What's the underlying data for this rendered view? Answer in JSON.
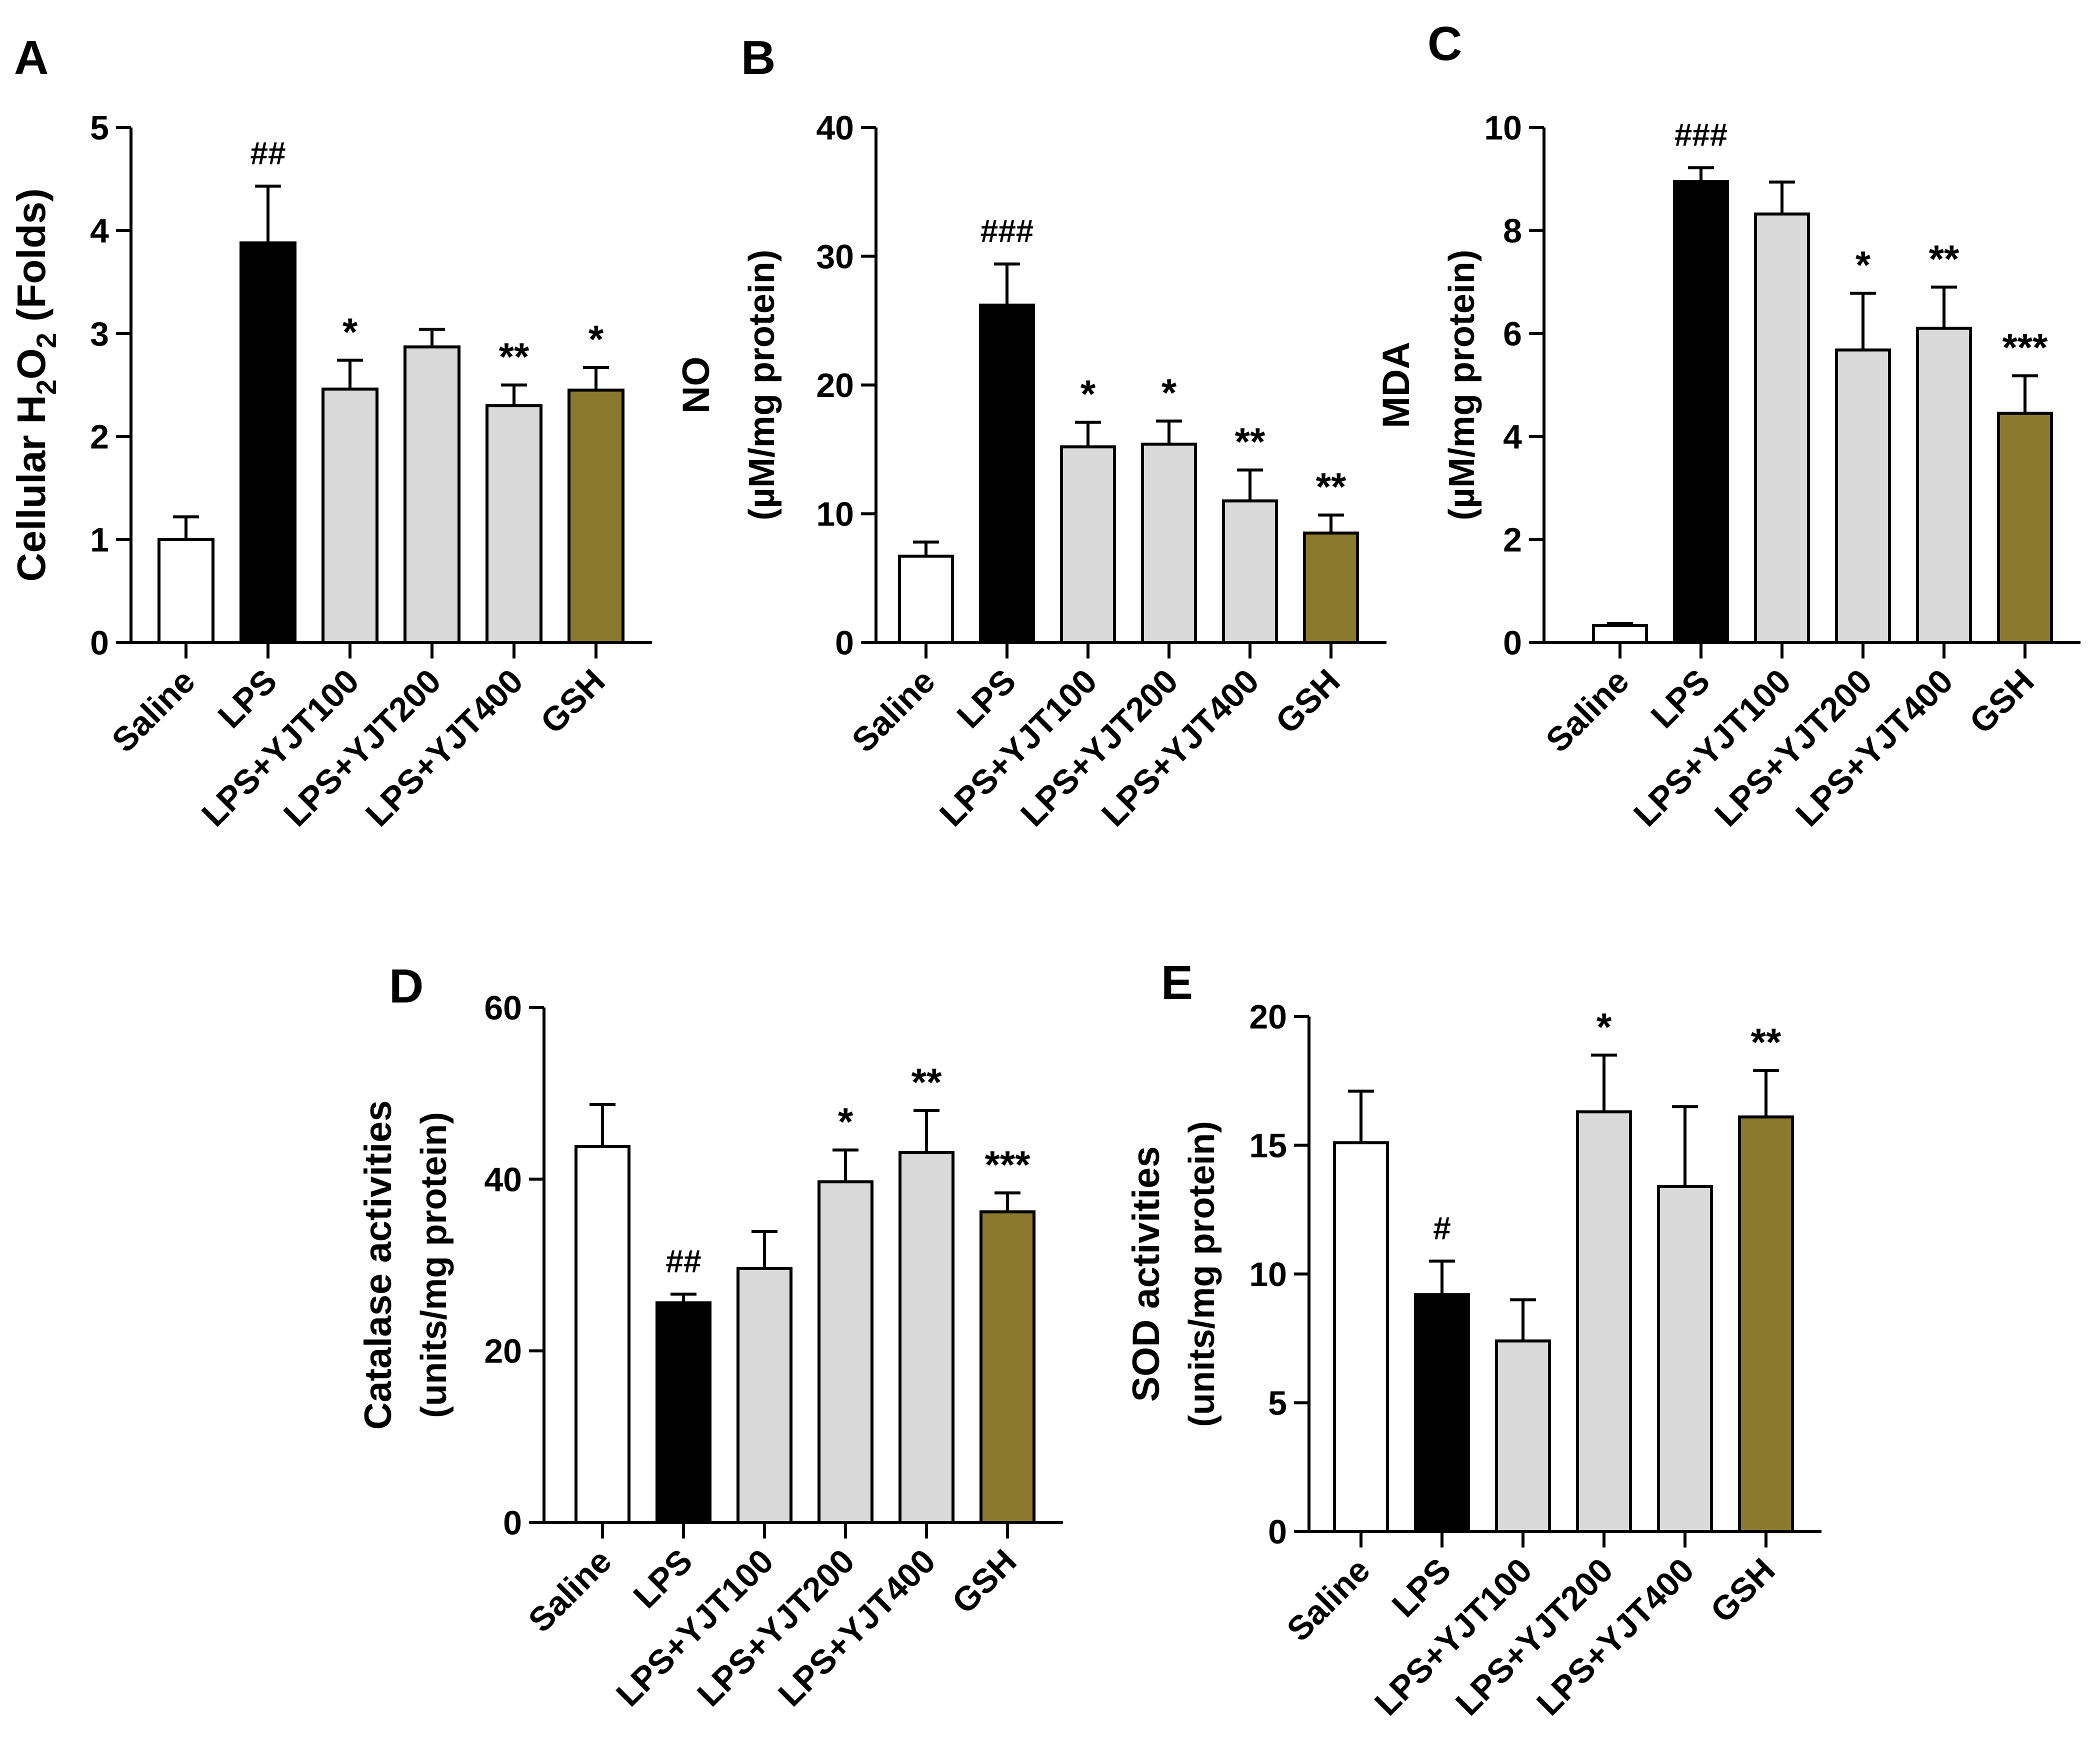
{
  "figure": {
    "background": "#ffffff"
  },
  "colors": {
    "Saline": "#ffffff",
    "LPS": "#000000",
    "LPS+YJT100": "#d9d9d9",
    "LPS+YJT200": "#d9d9d9",
    "LPS+YJT400": "#d9d9d9",
    "GSH": "#8b7a2e"
  },
  "chart_data": [
    {
      "panel": "A",
      "type": "bar",
      "ylabel_main": "Cellular H",
      "ylabel_sub1": "2",
      "ylabel_mid": "O",
      "ylabel_sub2": "2",
      "ylabel_tail": " (Folds)",
      "ylim": [
        0,
        5
      ],
      "yticks": [
        0,
        1,
        2,
        3,
        4,
        5
      ],
      "categories": [
        "Saline",
        "LPS",
        "LPS+YJT100",
        "LPS+YJT200",
        "LPS+YJT400",
        "GSH"
      ],
      "values": [
        1.0,
        3.88,
        2.46,
        2.87,
        2.3,
        2.45
      ],
      "errors": [
        0.22,
        0.55,
        0.28,
        0.17,
        0.2,
        0.22
      ],
      "significance": [
        "",
        "##",
        "*",
        "",
        "**",
        "*"
      ]
    },
    {
      "panel": "B",
      "type": "bar",
      "ylabel_line1": "NO",
      "ylabel_line2": "(µM/mg protein)",
      "ylim": [
        0,
        40
      ],
      "yticks": [
        0,
        10,
        20,
        30,
        40
      ],
      "categories": [
        "Saline",
        "LPS",
        "LPS+YJT100",
        "LPS+YJT200",
        "LPS+YJT400",
        "GSH"
      ],
      "values": [
        6.7,
        26.2,
        15.2,
        15.4,
        11.0,
        8.5
      ],
      "errors": [
        1.1,
        3.2,
        1.9,
        1.8,
        2.4,
        1.4
      ],
      "significance": [
        "",
        "###",
        "*",
        "*",
        "**",
        "**"
      ]
    },
    {
      "panel": "C",
      "type": "bar",
      "ylabel_line1": "MDA",
      "ylabel_line2": "(µM/mg protein)",
      "ylim": [
        0,
        10
      ],
      "yticks": [
        0,
        2,
        4,
        6,
        8,
        10
      ],
      "categories": [
        "Saline",
        "LPS",
        "LPS+YJT100",
        "LPS+YJT200",
        "LPS+YJT400",
        "GSH"
      ],
      "values": [
        0.33,
        8.95,
        8.32,
        5.68,
        6.1,
        4.45
      ],
      "errors": [
        0.04,
        0.27,
        0.62,
        1.1,
        0.8,
        0.73
      ],
      "significance": [
        "",
        "###",
        "",
        "*",
        "**",
        "***"
      ]
    },
    {
      "panel": "D",
      "type": "bar",
      "ylabel_line1": "Catalase activities",
      "ylabel_line2": "(units/mg protein)",
      "ylim": [
        0,
        60
      ],
      "yticks": [
        0,
        20,
        40,
        60
      ],
      "categories": [
        "Saline",
        "LPS",
        "LPS+YJT100",
        "LPS+YJT200",
        "LPS+YJT400",
        "GSH"
      ],
      "values": [
        43.8,
        25.6,
        29.6,
        39.7,
        43.1,
        36.2
      ],
      "errors": [
        4.9,
        1.0,
        4.3,
        3.7,
        4.9,
        2.2
      ],
      "significance": [
        "",
        "##",
        "",
        "*",
        "**",
        "***"
      ]
    },
    {
      "panel": "E",
      "type": "bar",
      "ylabel_line1": "SOD activities",
      "ylabel_line2": "(units/mg protein)",
      "ylim": [
        0,
        20
      ],
      "yticks": [
        0,
        5,
        10,
        15,
        20
      ],
      "categories": [
        "Saline",
        "LPS",
        "LPS+YJT100",
        "LPS+YJT200",
        "LPS+YJT400",
        "GSH"
      ],
      "values": [
        15.1,
        9.2,
        7.4,
        16.3,
        13.4,
        16.1
      ],
      "errors": [
        2.0,
        1.3,
        1.6,
        2.2,
        3.1,
        1.8
      ],
      "significance": [
        "",
        "#",
        "",
        "*",
        "",
        "**"
      ]
    }
  ]
}
